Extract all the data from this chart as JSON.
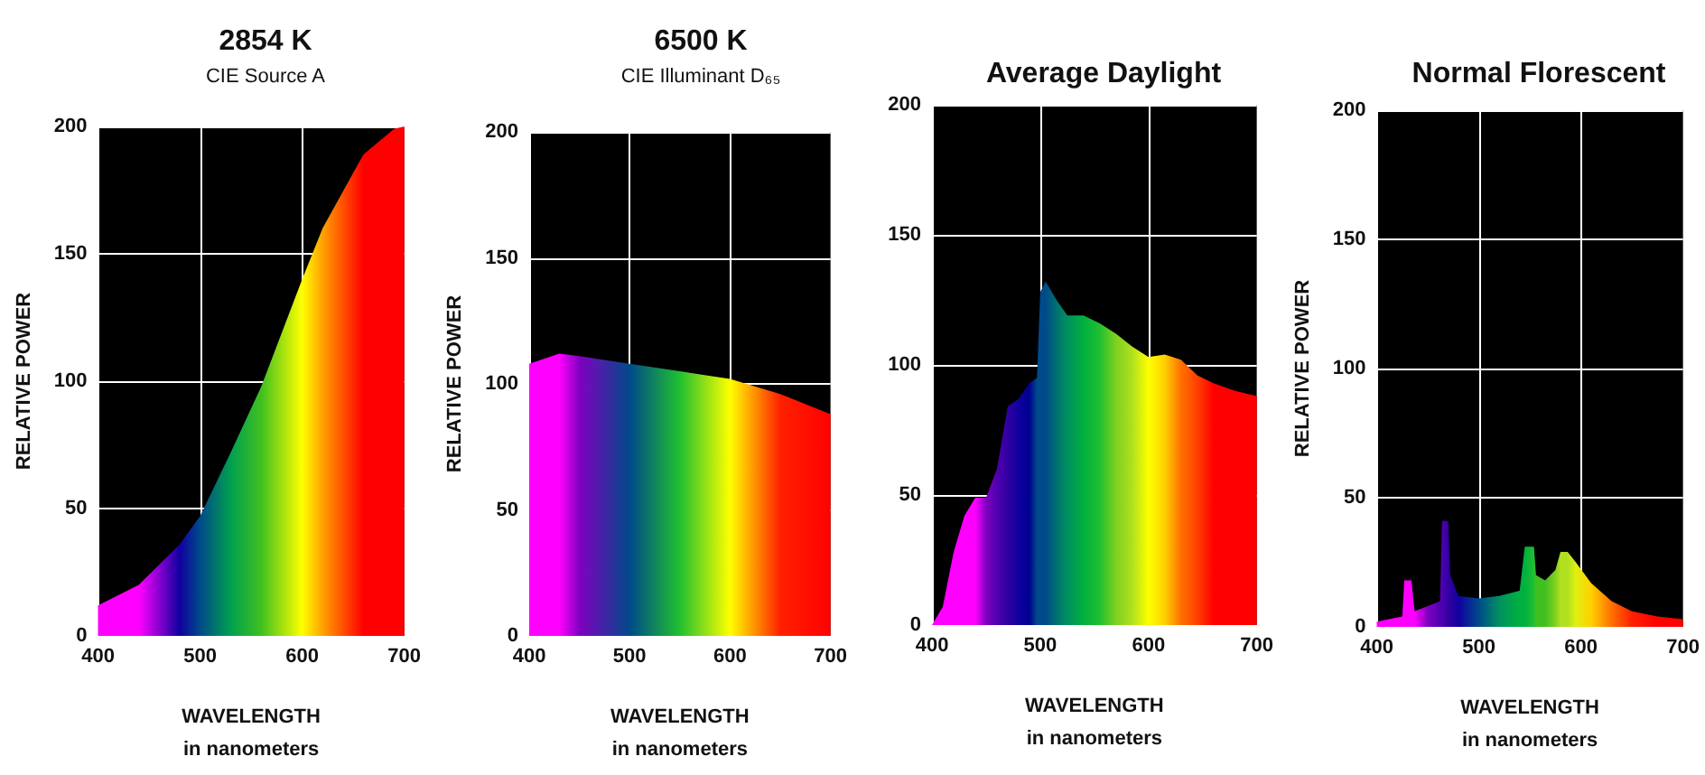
{
  "chart_data": [
    {
      "type": "area",
      "title": "2854 K",
      "subtitle": "CIE Source A",
      "xlabel": "WAVELENGTH\nin nanometers",
      "ylabel": "RELATIVE POWER",
      "x": [
        400,
        440,
        480,
        500,
        530,
        560,
        600,
        620,
        660,
        690,
        700
      ],
      "series": [
        {
          "values": [
            12,
            20,
            36,
            47,
            72,
            98,
            140,
            160,
            189,
            199,
            200
          ],
          "colors": [
            "#ff00ff",
            "#ff00ff",
            "#1000a0",
            "#004a8a",
            "#00a050",
            "#40c020",
            "#ffff00",
            "#ffa000",
            "#ff0000",
            "#ff0000",
            "#ff0000"
          ]
        }
      ],
      "xlim": [
        400,
        700
      ],
      "ylim": [
        0,
        200
      ],
      "xticks": [
        400,
        500,
        600,
        700
      ],
      "yticks": [
        0,
        50,
        100,
        150,
        200
      ],
      "grid": true
    },
    {
      "type": "area",
      "title": "6500 K",
      "subtitle": "CIE Illuminant D₆₅",
      "xlabel": "WAVELENGTH\nin nanometers",
      "ylabel": "RELATIVE POWER",
      "x": [
        400,
        430,
        450,
        500,
        550,
        600,
        650,
        700
      ],
      "series": [
        {
          "values": [
            108,
            112,
            111,
            108,
            105,
            102,
            96,
            88
          ],
          "colors": [
            "#ff00ff",
            "#ff00ff",
            "#8000c0",
            "#004a8a",
            "#20c030",
            "#ffff00",
            "#ff2000",
            "#ff0000"
          ]
        }
      ],
      "xlim": [
        400,
        700
      ],
      "ylim": [
        0,
        200
      ],
      "xticks": [
        400,
        500,
        600,
        700
      ],
      "yticks": [
        0,
        50,
        100,
        150,
        200
      ],
      "grid": true
    },
    {
      "type": "area",
      "title": "Average Daylight",
      "xlabel": "WAVELENGTH\nin nanometers",
      "x": [
        400,
        410,
        420,
        430,
        440,
        450,
        460,
        470,
        480,
        490,
        497,
        500,
        505,
        515,
        525,
        540,
        555,
        570,
        585,
        600,
        615,
        630,
        645,
        660,
        680,
        700
      ],
      "series": [
        {
          "values": [
            0,
            7,
            28,
            42,
            49,
            49,
            60,
            84,
            87,
            93,
            95,
            128,
            132,
            125,
            119,
            119,
            116,
            112,
            107,
            103,
            104,
            102,
            96,
            93,
            90,
            88
          ],
          "colors": [
            "#ff00ff",
            "#ff00ff",
            "#ff00ff",
            "#ff00ff",
            "#ff00ff",
            "#8000c0",
            "#5000b0",
            "#3000a0",
            "#1000a0",
            "#000090",
            "#004a8a",
            "#004a8a",
            "#004a8a",
            "#007070",
            "#009060",
            "#00b040",
            "#20c030",
            "#80d020",
            "#b0e020",
            "#ffff00",
            "#ffd000",
            "#ff7000",
            "#ff4000",
            "#ff0000",
            "#ff0000",
            "#ff0000"
          ]
        }
      ],
      "xlim": [
        400,
        700
      ],
      "ylim": [
        0,
        200
      ],
      "xticks": [
        400,
        500,
        600,
        700
      ],
      "yticks": [
        0,
        50,
        100,
        150,
        200
      ],
      "grid": true
    },
    {
      "type": "area",
      "title": "Normal Florescent",
      "xlabel": "WAVELENGTH\nin nanometers",
      "ylabel": "RELATIVE POWER",
      "x": [
        400,
        425,
        427,
        434,
        437,
        450,
        462,
        464,
        470,
        472,
        480,
        500,
        520,
        540,
        545,
        554,
        556,
        565,
        575,
        580,
        587,
        595,
        610,
        630,
        650,
        675,
        700
      ],
      "series": [
        {
          "values": [
            2,
            4,
            18,
            18,
            6,
            8,
            10,
            41,
            41,
            20,
            12,
            11,
            12,
            14,
            31,
            31,
            20,
            18,
            22,
            29,
            29,
            25,
            17,
            10,
            6,
            4,
            3
          ],
          "colors": [
            "#ff00ff",
            "#ff00ff",
            "#ff00ff",
            "#ff00ff",
            "#ff00ff",
            "#8000c0",
            "#5000b0",
            "#5000b0",
            "#3000a0",
            "#3000a0",
            "#1000a0",
            "#004a8a",
            "#009060",
            "#00b040",
            "#00b040",
            "#20c030",
            "#40c020",
            "#40c020",
            "#80d020",
            "#b0e020",
            "#b0e020",
            "#e0f010",
            "#ffd000",
            "#ff7000",
            "#ff2000",
            "#ff0000",
            "#ff0000"
          ]
        }
      ],
      "xlim": [
        400,
        700
      ],
      "ylim": [
        0,
        200
      ],
      "xticks": [
        400,
        500,
        600,
        700
      ],
      "yticks": [
        0,
        50,
        100,
        150,
        200
      ],
      "grid": true
    }
  ]
}
